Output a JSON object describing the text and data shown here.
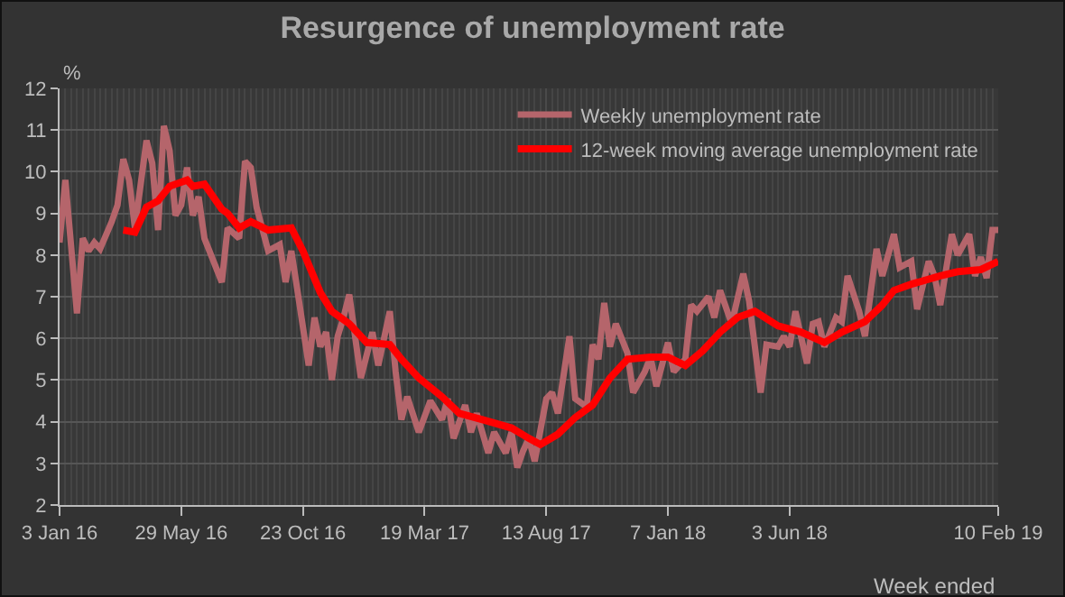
{
  "chart_data": {
    "type": "line",
    "title": "Resurgence of unemployment rate",
    "xlabel": "Week ended",
    "ylabel": "%",
    "xlim": [
      "2016-01-03",
      "2019-02-10"
    ],
    "xticks": [
      {
        "value": "2016-01-03",
        "label": "3 Jan 16"
      },
      {
        "value": "2016-05-29",
        "label": "29 May 16"
      },
      {
        "value": "2016-10-23",
        "label": "23 Oct 16"
      },
      {
        "value": "2017-03-19",
        "label": "19 Mar 17"
      },
      {
        "value": "2017-08-13",
        "label": "13 Aug 17"
      },
      {
        "value": "2018-01-07",
        "label": "7 Jan 18"
      },
      {
        "value": "2018-06-03",
        "label": "3 Jun 18"
      },
      {
        "value": "2019-02-10",
        "label": "10 Feb 19"
      }
    ],
    "ylim": [
      2,
      12
    ],
    "yticks": [
      2,
      3,
      4,
      5,
      6,
      7,
      8,
      9,
      10,
      11,
      12
    ],
    "grid": true,
    "legend": "top right",
    "series": [
      {
        "name": "Weekly unemployment rate",
        "color": "#b5656b",
        "x": [
          "2016-01-03",
          "2016-01-10",
          "2016-01-24",
          "2016-01-31",
          "2016-02-07",
          "2016-02-14",
          "2016-02-21",
          "2016-03-06",
          "2016-03-13",
          "2016-03-20",
          "2016-03-27",
          "2016-04-03",
          "2016-04-17",
          "2016-04-24",
          "2016-05-01",
          "2016-05-08",
          "2016-05-15",
          "2016-05-22",
          "2016-05-29",
          "2016-06-05",
          "2016-06-12",
          "2016-06-19",
          "2016-06-26",
          "2016-07-17",
          "2016-07-24",
          "2016-08-07",
          "2016-08-14",
          "2016-08-21",
          "2016-08-28",
          "2016-09-11",
          "2016-09-25",
          "2016-10-02",
          "2016-10-09",
          "2016-10-16",
          "2016-10-30",
          "2016-11-06",
          "2016-11-13",
          "2016-11-20",
          "2016-11-27",
          "2016-12-04",
          "2016-12-11",
          "2016-12-18",
          "2017-01-01",
          "2017-01-15",
          "2017-01-22",
          "2017-02-05",
          "2017-02-12",
          "2017-02-19",
          "2017-02-26",
          "2017-03-12",
          "2017-03-26",
          "2017-04-09",
          "2017-04-16",
          "2017-04-23",
          "2017-05-07",
          "2017-05-14",
          "2017-05-21",
          "2017-06-04",
          "2017-06-11",
          "2017-06-25",
          "2017-07-02",
          "2017-07-09",
          "2017-07-16",
          "2017-07-23",
          "2017-07-30",
          "2017-08-13",
          "2017-08-20",
          "2017-08-27",
          "2017-09-10",
          "2017-09-17",
          "2017-10-01",
          "2017-10-08",
          "2017-10-15",
          "2017-10-22",
          "2017-10-29",
          "2017-11-05",
          "2017-11-19",
          "2017-11-26",
          "2017-12-10",
          "2017-12-17",
          "2017-12-24",
          "2018-01-07",
          "2018-01-14",
          "2018-01-28",
          "2018-02-04",
          "2018-02-11",
          "2018-02-25",
          "2018-03-04",
          "2018-03-11",
          "2018-03-25",
          "2018-04-08",
          "2018-04-15",
          "2018-04-29",
          "2018-05-06",
          "2018-05-20",
          "2018-05-27",
          "2018-06-03",
          "2018-06-10",
          "2018-06-24",
          "2018-07-01",
          "2018-07-08",
          "2018-07-15",
          "2018-07-29",
          "2018-08-05",
          "2018-08-12",
          "2018-08-26",
          "2018-09-02",
          "2018-09-16",
          "2018-09-23",
          "2018-10-07",
          "2018-10-14",
          "2018-10-28",
          "2018-11-04",
          "2018-11-18",
          "2018-11-25",
          "2018-12-02",
          "2018-12-16",
          "2018-12-23",
          "2019-01-06",
          "2019-01-13",
          "2019-01-20",
          "2019-01-27",
          "2019-02-03",
          "2019-02-10"
        ],
        "values": [
          8.3,
          9.8,
          6.6,
          8.4,
          8.1,
          8.3,
          8.15,
          8.8,
          9.2,
          10.3,
          9.8,
          8.65,
          10.75,
          10.2,
          8.6,
          11.1,
          10.5,
          8.95,
          9.2,
          10.1,
          8.95,
          9.4,
          8.4,
          7.35,
          8.65,
          8.4,
          10.25,
          10.1,
          9.15,
          8.1,
          8.25,
          7.35,
          8.1,
          7.2,
          5.35,
          6.5,
          5.8,
          6.15,
          5.0,
          6.05,
          6.5,
          7.05,
          5.05,
          6.15,
          5.35,
          6.65,
          5.2,
          4.05,
          4.6,
          3.75,
          4.5,
          4.05,
          4.55,
          3.6,
          4.4,
          3.75,
          4.2,
          3.25,
          3.75,
          3.25,
          3.75,
          2.9,
          3.3,
          3.6,
          3.05,
          4.55,
          4.7,
          4.2,
          6.05,
          4.55,
          4.35,
          5.85,
          5.5,
          6.85,
          5.8,
          6.35,
          5.65,
          4.7,
          5.2,
          5.55,
          4.85,
          5.9,
          5.2,
          5.5,
          6.8,
          6.65,
          7.0,
          6.5,
          7.15,
          6.35,
          7.55,
          6.9,
          4.7,
          5.85,
          5.8,
          6.05,
          5.8,
          6.65,
          5.4,
          6.35,
          6.4,
          5.8,
          6.5,
          6.4,
          7.5,
          6.65,
          6.05,
          8.15,
          7.5,
          8.5,
          7.7,
          7.85,
          6.7,
          7.85,
          7.5,
          6.8,
          8.5,
          8.0,
          8.5,
          7.5,
          7.95,
          7.45,
          8.6,
          8.6
        ]
      },
      {
        "name": "12-week moving average unemployment rate",
        "color": "#ff0000",
        "x": [
          "2016-03-20",
          "2016-04-03",
          "2016-04-17",
          "2016-05-01",
          "2016-05-15",
          "2016-06-05",
          "2016-06-12",
          "2016-06-26",
          "2016-07-17",
          "2016-07-24",
          "2016-08-07",
          "2016-08-21",
          "2016-09-11",
          "2016-10-09",
          "2016-10-23",
          "2016-11-13",
          "2016-11-27",
          "2016-12-18",
          "2017-01-08",
          "2017-02-05",
          "2017-02-19",
          "2017-03-12",
          "2017-04-09",
          "2017-04-30",
          "2017-05-28",
          "2017-07-02",
          "2017-07-23",
          "2017-08-06",
          "2017-08-27",
          "2017-09-17",
          "2017-10-08",
          "2017-10-29",
          "2017-11-19",
          "2017-12-17",
          "2018-01-07",
          "2018-01-28",
          "2018-02-18",
          "2018-03-11",
          "2018-04-01",
          "2018-04-22",
          "2018-05-20",
          "2018-06-17",
          "2018-07-15",
          "2018-08-05",
          "2018-09-02",
          "2018-09-23",
          "2018-10-07",
          "2018-10-28",
          "2018-12-02",
          "2018-12-23",
          "2019-01-20",
          "2019-02-10"
        ],
        "values": [
          8.6,
          8.55,
          9.15,
          9.3,
          9.65,
          9.8,
          9.65,
          9.7,
          9.1,
          9.0,
          8.65,
          8.8,
          8.6,
          8.65,
          8.1,
          7.1,
          6.65,
          6.35,
          5.9,
          5.85,
          5.5,
          5.05,
          4.6,
          4.2,
          4.05,
          3.85,
          3.6,
          3.45,
          3.7,
          4.1,
          4.4,
          5.05,
          5.5,
          5.55,
          5.55,
          5.35,
          5.7,
          6.15,
          6.5,
          6.65,
          6.3,
          6.15,
          5.9,
          6.15,
          6.4,
          6.8,
          7.15,
          7.3,
          7.5,
          7.6,
          7.65,
          7.85
        ]
      }
    ]
  }
}
